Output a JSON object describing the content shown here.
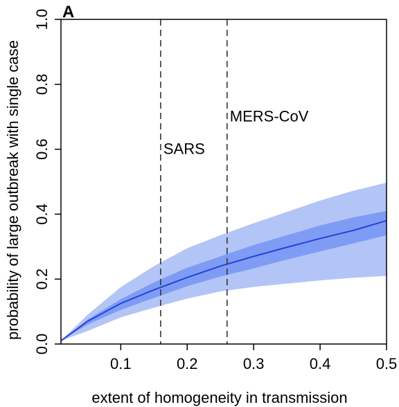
{
  "chart_data": {
    "type": "line",
    "panel_label": "A",
    "xlabel": "extent of homogeneity in transmission",
    "ylabel": "probability of large outbreak with single case",
    "xlim": [
      0.01,
      0.5
    ],
    "ylim": [
      0.0,
      1.0
    ],
    "x_ticks": [
      0.1,
      0.2,
      0.3,
      0.4,
      0.5
    ],
    "x_tick_labels": [
      "0.1",
      "0.2",
      "0.3",
      "0.4",
      "0.5"
    ],
    "y_ticks": [
      0.0,
      0.2,
      0.4,
      0.6,
      0.8,
      1.0
    ],
    "y_tick_labels": [
      "0.0",
      "0.2",
      "0.4",
      "0.6",
      "0.8",
      "1.0"
    ],
    "grid": false,
    "x": [
      0.01,
      0.05,
      0.1,
      0.15,
      0.2,
      0.25,
      0.3,
      0.35,
      0.4,
      0.45,
      0.5
    ],
    "series": [
      {
        "role": "median",
        "values": [
          0.01,
          0.07,
          0.125,
          0.167,
          0.205,
          0.24,
          0.27,
          0.298,
          0.325,
          0.35,
          0.38
        ]
      }
    ],
    "bands": [
      {
        "level": "outer",
        "lower": [
          0.01,
          0.04,
          0.082,
          0.112,
          0.14,
          0.162,
          0.176,
          0.186,
          0.196,
          0.204,
          0.21
        ],
        "upper": [
          0.01,
          0.09,
          0.175,
          0.24,
          0.295,
          0.335,
          0.372,
          0.407,
          0.442,
          0.472,
          0.497
        ],
        "color": "#b3c4f7"
      },
      {
        "level": "inner",
        "lower": [
          0.01,
          0.06,
          0.105,
          0.142,
          0.178,
          0.208,
          0.233,
          0.26,
          0.285,
          0.31,
          0.335
        ],
        "upper": [
          0.01,
          0.075,
          0.138,
          0.19,
          0.235,
          0.27,
          0.305,
          0.335,
          0.365,
          0.39,
          0.41
        ],
        "color": "#7f9cf5"
      }
    ],
    "line_color": "#2343d6",
    "reference_lines": [
      {
        "x": 0.16,
        "label": "SARS",
        "label_y": 0.6
      },
      {
        "x": 0.26,
        "label": "MERS-CoV",
        "label_y": 0.7
      }
    ]
  }
}
